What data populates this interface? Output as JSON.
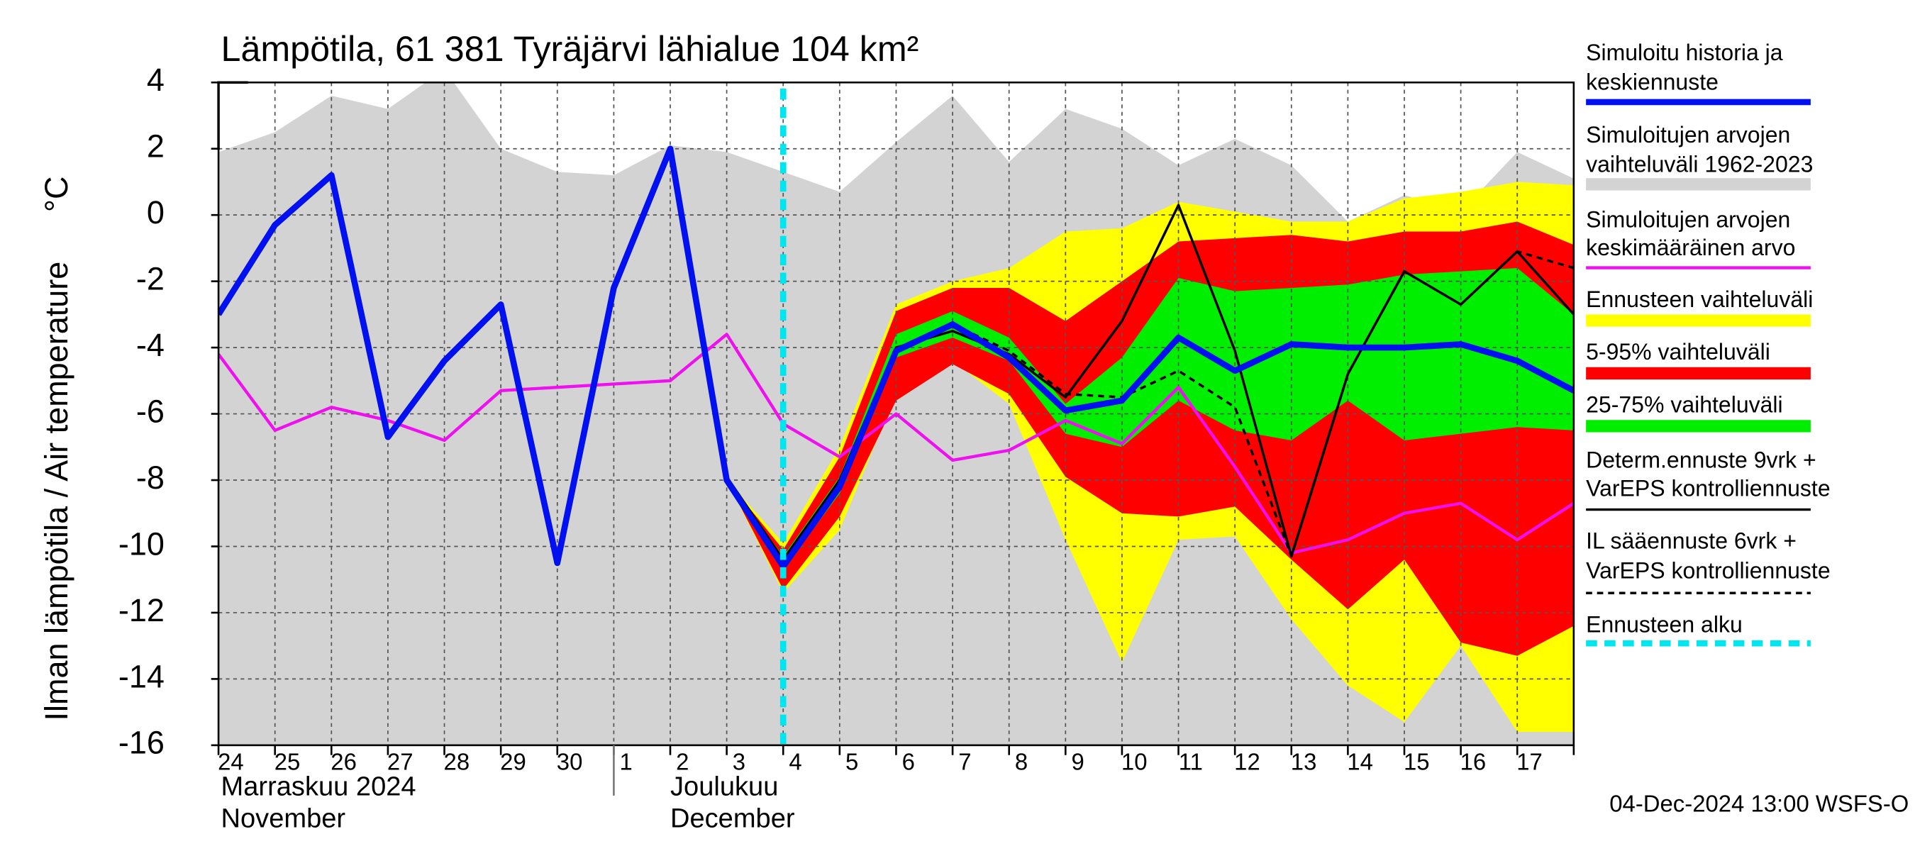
{
  "chart_data": {
    "type": "line",
    "title": "Lämpötila, 61 381 Tyräjärvi lähialue 104 km²",
    "y_label": "Ilman lämpötila / Air temperature",
    "y_unit": "°C",
    "categories": [
      "24",
      "25",
      "26",
      "27",
      "28",
      "29",
      "30",
      "1",
      "2",
      "3",
      "4",
      "5",
      "6",
      "7",
      "8",
      "9",
      "10",
      "11",
      "12",
      "13",
      "14",
      "15",
      "16",
      "17",
      null
    ],
    "x_group_labels": [
      [
        "Marraskuu 2024",
        "November"
      ],
      [
        "Joulukuu",
        "December"
      ]
    ],
    "footer": "04-Dec-2024 13:00 WSFS-O",
    "ylim": [
      -16,
      4
    ],
    "yticks": [
      -16,
      -14,
      -12,
      -10,
      -8,
      -6,
      -4,
      -2,
      0,
      2,
      4
    ],
    "grid": true,
    "series": [
      {
        "name": [
          "Simuloitu historia ja",
          "keskiennuste"
        ],
        "kind": "line",
        "color": "#0010ee",
        "width": 5,
        "values": [
          -3.0,
          -0.3,
          1.2,
          -6.7,
          -4.4,
          -2.7,
          -10.5,
          -2.2,
          2.0,
          -8.0,
          -10.6,
          -8.2,
          -4.1,
          -3.3,
          -4.3,
          -5.9,
          -5.6,
          -3.7,
          -4.7,
          -3.9,
          -4.0,
          -4.0,
          -3.9,
          -4.4,
          -5.3
        ]
      },
      {
        "name": [
          "Simuloitujen arvojen",
          "vaihteluväli 1962-2023"
        ],
        "kind": "band",
        "color": "#d3d3d3",
        "high": [
          1.9,
          2.5,
          3.6,
          3.2,
          4.4,
          2.0,
          1.3,
          1.2,
          2.1,
          1.9,
          1.3,
          0.7,
          2.2,
          3.6,
          1.6,
          3.2,
          2.6,
          1.5,
          2.3,
          1.5,
          -0.2,
          0.6,
          0.1,
          1.9,
          1.1
        ],
        "low": [
          -16,
          -16,
          -16,
          -16,
          -16,
          -16,
          -16,
          -16,
          -16,
          -16,
          -16,
          -16,
          -16,
          -16,
          -16,
          -16,
          -16,
          -16,
          -16,
          -16,
          -16,
          -16,
          -16,
          -16,
          -16
        ]
      },
      {
        "name": [
          "Simuloitujen arvojen",
          "keskimääräinen arvo"
        ],
        "kind": "line",
        "color": "#ee10ee",
        "width": 2.5,
        "values": [
          -4.2,
          -6.5,
          -5.8,
          -6.2,
          -6.8,
          -5.3,
          -5.2,
          -5.1,
          -5.0,
          -3.6,
          -6.3,
          -7.3,
          -6.0,
          -7.4,
          -7.1,
          -6.2,
          -6.9,
          -5.2,
          -7.6,
          -10.2,
          -9.8,
          -9.0,
          -8.7,
          -9.8,
          -8.7
        ]
      },
      {
        "name": [
          "Ennusteen vaihteluväli"
        ],
        "kind": "band",
        "color": "#ffff00",
        "high": [
          null,
          null,
          null,
          null,
          null,
          null,
          null,
          null,
          null,
          -8,
          -9.9,
          -7.0,
          -2.7,
          -2.0,
          -1.6,
          -0.5,
          -0.4,
          0.4,
          0.1,
          -0.2,
          -0.2,
          0.5,
          0.7,
          1.0,
          0.9
        ],
        "low": [
          null,
          null,
          null,
          null,
          null,
          null,
          null,
          null,
          null,
          -8,
          -11.4,
          -9.5,
          -5.4,
          -4.4,
          -5.7,
          -9.8,
          -13.5,
          -9.8,
          -9.7,
          -12.2,
          -14.2,
          -15.3,
          -13,
          -15.6,
          -15.6
        ]
      },
      {
        "name": [
          "5-95% vaihteluväli"
        ],
        "kind": "band",
        "color": "#ff0000",
        "high": [
          null,
          null,
          null,
          null,
          null,
          null,
          null,
          null,
          null,
          -8,
          -10.1,
          -7.3,
          -2.9,
          -2.2,
          -2.2,
          -3.2,
          -2.0,
          -0.8,
          -0.7,
          -0.6,
          -0.8,
          -0.5,
          -0.5,
          -0.2,
          -0.9
        ],
        "low": [
          null,
          null,
          null,
          null,
          null,
          null,
          null,
          null,
          null,
          -8,
          -11.3,
          -9.1,
          -5.6,
          -4.5,
          -5.4,
          -7.9,
          -9.0,
          -9.1,
          -8.8,
          -10.4,
          -11.9,
          -10.4,
          -12.9,
          -13.3,
          -12.4
        ]
      },
      {
        "name": [
          "25-75% vaihteluväli"
        ],
        "kind": "band",
        "color": "#00ee00",
        "high": [
          null,
          null,
          null,
          null,
          null,
          null,
          null,
          null,
          null,
          -8,
          -10.3,
          -7.9,
          -3.6,
          -2.9,
          -3.7,
          -5.7,
          -4.3,
          -1.9,
          -2.3,
          -2.2,
          -2.1,
          -1.8,
          -1.7,
          -1.6,
          -3.0
        ],
        "low": [
          null,
          null,
          null,
          null,
          null,
          null,
          null,
          null,
          null,
          -8,
          -10.7,
          -8.4,
          -4.3,
          -3.7,
          -4.4,
          -6.6,
          -7.0,
          -5.6,
          -6.5,
          -6.8,
          -5.6,
          -6.8,
          -6.6,
          -6.4,
          -6.5
        ]
      },
      {
        "name": [
          "Determ.ennuste 9vrk +",
          "VarEPS kontrolliennuste"
        ],
        "kind": "line",
        "color": "#000000",
        "width": 2,
        "values": [
          null,
          null,
          null,
          null,
          null,
          null,
          null,
          null,
          2.0,
          -7.9,
          -10.4,
          -8.0,
          -4.0,
          -3.5,
          -4.2,
          -5.5,
          -3.2,
          0.3,
          -4.1,
          -10.3,
          -4.8,
          -1.7,
          -2.7,
          -1.1,
          -3.0
        ]
      },
      {
        "name": [
          "IL sääennuste 6vrk  +",
          " VarEPS kontrolliennuste"
        ],
        "kind": "line",
        "color": "#000000",
        "width": 2,
        "dashed": true,
        "values": [
          null,
          null,
          null,
          null,
          null,
          null,
          null,
          null,
          2.0,
          -7.9,
          -10.5,
          -8.1,
          -4.1,
          -3.3,
          -4.1,
          -5.4,
          -5.5,
          -4.7,
          -5.8,
          -10.3,
          -4.8,
          -1.7,
          -2.7,
          -1.1,
          -1.6
        ]
      },
      {
        "name": [
          "Ennusteen alku"
        ],
        "kind": "vline",
        "color": "#00e5ee",
        "width": 5,
        "dashed": true,
        "x": "4"
      }
    ]
  }
}
